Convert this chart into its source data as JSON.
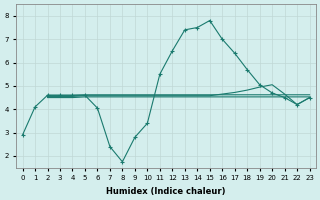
{
  "xlabel": "Humidex (Indice chaleur)",
  "background_color": "#d4eeed",
  "grid_color": "#c0d8d5",
  "line_color": "#1a7a6e",
  "x": [
    0,
    1,
    2,
    3,
    4,
    5,
    6,
    7,
    8,
    9,
    10,
    11,
    12,
    13,
    14,
    15,
    16,
    17,
    18,
    19,
    20,
    21,
    22,
    23
  ],
  "line1_y": [
    2.9,
    4.1,
    4.6,
    4.6,
    4.6,
    4.6,
    4.05,
    2.4,
    1.75,
    2.8,
    3.4,
    5.5,
    6.5,
    7.4,
    7.5,
    7.8,
    7.0,
    6.4,
    5.7,
    5.05,
    4.7,
    4.5,
    4.2,
    4.5
  ],
  "line2_x": [
    2,
    3,
    4,
    5,
    6,
    7,
    8,
    9,
    10,
    11,
    12,
    13,
    14,
    15,
    16,
    17,
    18,
    19,
    20,
    21,
    22,
    23
  ],
  "line2_y": [
    4.6,
    4.6,
    4.6,
    4.62,
    4.62,
    4.62,
    4.62,
    4.62,
    4.62,
    4.62,
    4.62,
    4.62,
    4.62,
    4.62,
    4.62,
    4.62,
    4.62,
    4.62,
    4.62,
    4.62,
    4.62,
    4.62
  ],
  "line3_x": [
    2,
    3,
    4,
    5,
    6,
    7,
    8,
    9,
    10,
    11,
    12,
    13,
    14,
    15,
    16,
    17,
    18,
    19,
    20,
    21,
    22,
    23
  ],
  "line3_y": [
    4.55,
    4.55,
    4.55,
    4.58,
    4.58,
    4.58,
    4.58,
    4.58,
    4.58,
    4.58,
    4.58,
    4.58,
    4.58,
    4.58,
    4.65,
    4.72,
    4.82,
    4.95,
    5.05,
    4.65,
    4.2,
    4.5
  ],
  "line4_x": [
    2,
    3,
    4,
    5,
    6,
    7,
    8,
    9,
    10,
    11,
    12,
    13,
    14,
    15,
    16,
    17,
    18,
    19,
    20,
    21,
    22,
    23
  ],
  "line4_y": [
    4.5,
    4.5,
    4.5,
    4.53,
    4.53,
    4.53,
    4.53,
    4.53,
    4.53,
    4.53,
    4.53,
    4.53,
    4.53,
    4.53,
    4.53,
    4.53,
    4.53,
    4.53,
    4.53,
    4.53,
    4.53,
    4.53
  ],
  "ylim": [
    1.5,
    8.5
  ],
  "xlim": [
    -0.5,
    23.5
  ],
  "yticks": [
    2,
    3,
    4,
    5,
    6,
    7,
    8
  ],
  "xticks": [
    0,
    1,
    2,
    3,
    4,
    5,
    6,
    7,
    8,
    9,
    10,
    11,
    12,
    13,
    14,
    15,
    16,
    17,
    18,
    19,
    20,
    21,
    22,
    23
  ],
  "xlabel_fontsize": 6,
  "tick_fontsize": 5,
  "linewidth": 0.8,
  "marker": "+",
  "markersize": 3
}
